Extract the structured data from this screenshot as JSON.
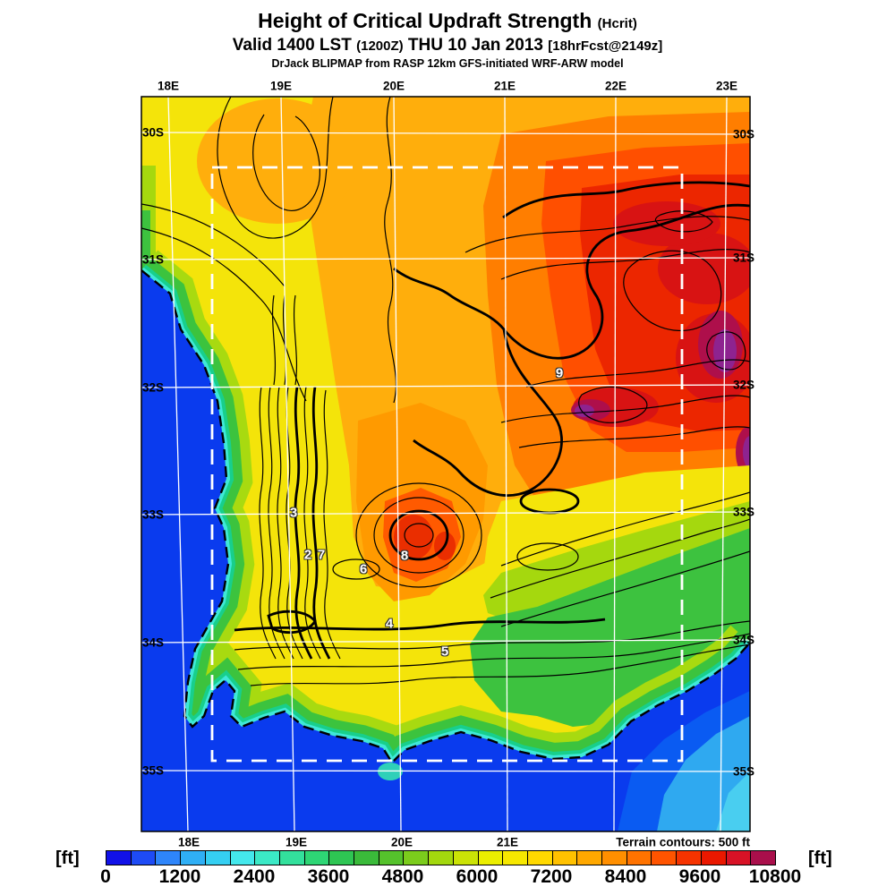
{
  "header": {
    "title": "Height of Critical Updraft Strength",
    "title_suffix": "(Hcrit)",
    "valid_prefix": "Valid 1400 LST",
    "valid_zulu": "(1200Z)",
    "valid_date": "THU 10 Jan 2013",
    "valid_fcst": "[18hrFcst@2149z]",
    "model_line": "DrJack BLIPMAP from RASP 12km GFS-initiated WRF-ARW model"
  },
  "map": {
    "top_lon_labels": [
      "18E",
      "19E",
      "20E",
      "21E",
      "22E",
      "23E"
    ],
    "bottom_lon_labels": [
      "18E",
      "19E",
      "20E",
      "21E"
    ],
    "left_lat_labels": [
      "30S",
      "31S",
      "32S",
      "33S",
      "34S",
      "35S"
    ],
    "right_lat_labels": [
      "30S",
      "31S",
      "32S",
      "33S",
      "34S",
      "35S"
    ],
    "terrain_note": "Terrain contours: 500 ft",
    "contour_labels": [
      "9",
      "8",
      "7",
      "6",
      "5",
      "4",
      "3",
      "2"
    ]
  },
  "colorbar": {
    "unit_left": "[ft]",
    "unit_right": "[ft]",
    "tick_labels": [
      "0",
      "1200",
      "2400",
      "3600",
      "4800",
      "6000",
      "7200",
      "8400",
      "9600",
      "10800"
    ],
    "scale_min_ft": 0,
    "scale_max_ft": 10800,
    "segment_step_ft": 400,
    "segment_colors": [
      "#1111E8",
      "#1E4BF5",
      "#2E85FA",
      "#2FAFF5",
      "#35CFF2",
      "#44E8EC",
      "#3BE9C6",
      "#33E09C",
      "#2ED675",
      "#2EC553",
      "#3ABA3A",
      "#55C22C",
      "#7BCC1C",
      "#A3D80E",
      "#CBE306",
      "#EBEE00",
      "#F7E800",
      "#FFD900",
      "#FFC100",
      "#FFA800",
      "#FF8F00",
      "#FF7300",
      "#FF5400",
      "#F63300",
      "#EA1800",
      "#D81226",
      "#A90F4B"
    ]
  }
}
